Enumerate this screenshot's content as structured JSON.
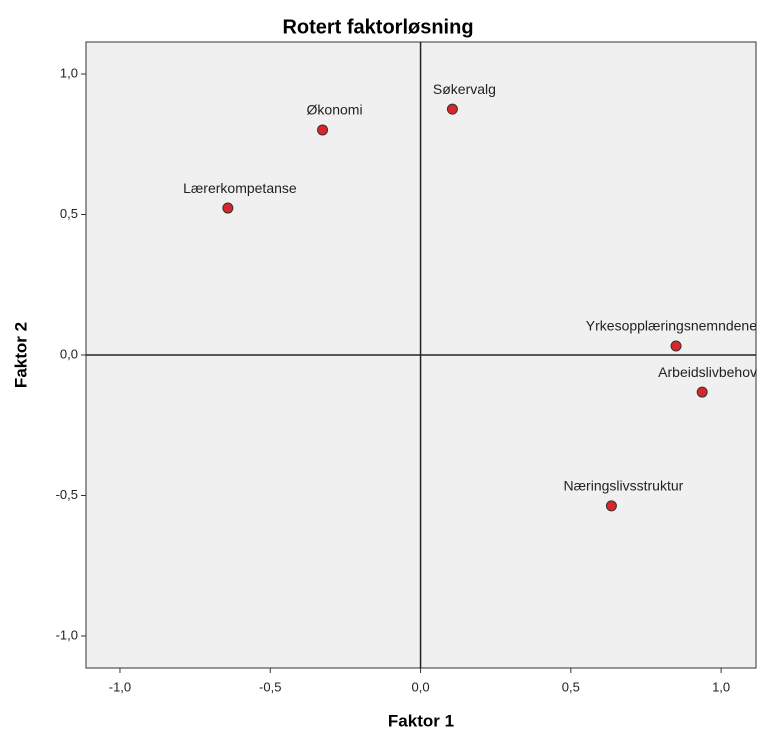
{
  "chart_data": {
    "type": "scatter",
    "title": "Rotert faktorløsning",
    "x_label": "Faktor 1",
    "y_label": "Faktor 2",
    "labels": [
      "Økonomi",
      "Søkervalg",
      "Lærerkompetanse",
      "Yrkesopplæringsnemndene",
      "Arbeidslivbehov",
      "Næringslivsstruktur"
    ],
    "x": [
      -0.326,
      0.106,
      -0.641,
      0.85,
      0.937,
      0.635
    ],
    "values": [
      0.801,
      0.875,
      0.523,
      0.032,
      -0.132,
      -0.537
    ],
    "color": "#d8262b",
    "xlim": [
      -1.113,
      1.116
    ],
    "ylim": [
      -1.114,
      1.114
    ],
    "xticks": [
      {
        "value": -1.0,
        "label": "-1,0"
      },
      {
        "value": -0.5,
        "label": "-0,5"
      },
      {
        "value": 0,
        "label": "0,0"
      },
      {
        "value": 0.5,
        "label": "0,5"
      },
      {
        "value": 1.0,
        "label": "1,0"
      }
    ],
    "yticks": [
      {
        "value": -1.0,
        "label": "-1,0"
      },
      {
        "value": -0.5,
        "label": "-0,5"
      },
      {
        "value": 0,
        "label": "0,0"
      },
      {
        "value": 0.5,
        "label": "0,5"
      },
      {
        "value": 1.0,
        "label": "1,0"
      }
    ],
    "reference_lines": true
  }
}
